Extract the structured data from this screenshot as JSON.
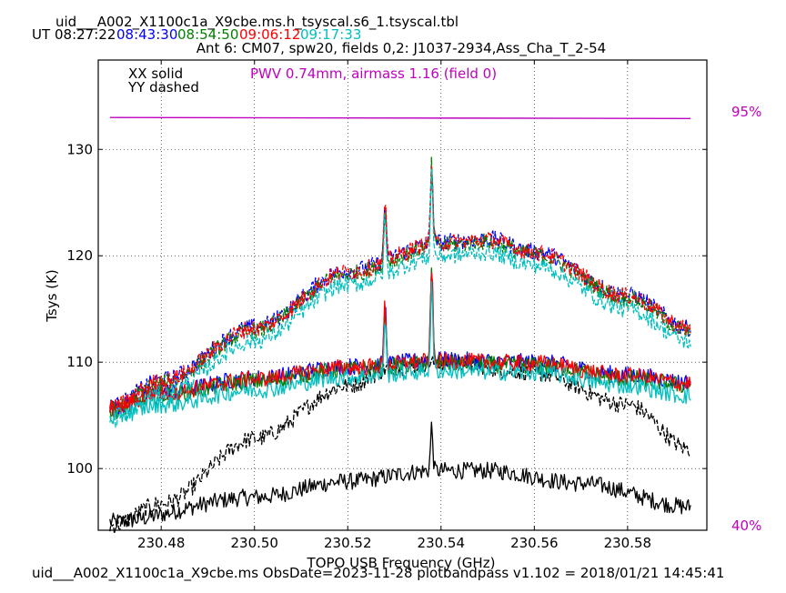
{
  "header": {
    "filename": "uid___A002_X1100c1a_X9cbe.ms.h_tsyscal.s6_1.tsyscal.tbl",
    "ut_label": "UT",
    "times": [
      {
        "text": "08:27:22",
        "color": "#000000"
      },
      {
        "text": "08:43:30",
        "color": "#0000ff"
      },
      {
        "text": "08:54:50",
        "color": "#007f00"
      },
      {
        "text": "09:06:12",
        "color": "#ff0000"
      },
      {
        "text": "09:17:33",
        "color": "#00bfbf"
      }
    ],
    "subtitle": "Ant 6: CM07,  spw20,  fields 0,2: J1037-2934,Ass_Cha_T_2-54"
  },
  "legend": {
    "xx": "XX solid",
    "yy": "YY dashed",
    "pwv": "PWV 0.74mm, airmass 1.16 (field 0)",
    "pwv_color": "#bf00bf"
  },
  "right_axis": {
    "top_label": "95%",
    "bottom_label": "40%",
    "color": "#bf00bf"
  },
  "footer": "uid___A002_X1100c1a_X9cbe.ms  ObsDate=2023-11-28   plotbandpass v1.102 = 2018/01/21 14:45:41",
  "chart_data": {
    "type": "line",
    "xlabel": "TOPO USB Frequency (GHz)",
    "ylabel": "Tsys (K)",
    "xlim": [
      230.4665,
      230.597
    ],
    "ylim": [
      94.2,
      138.4
    ],
    "xticks": [
      230.48,
      230.5,
      230.52,
      230.54,
      230.56,
      230.58
    ],
    "yticks": [
      100,
      110,
      120,
      130
    ],
    "xtick_labels": [
      "230.48",
      "230.50",
      "230.52",
      "230.54",
      "230.56",
      "230.58"
    ],
    "ytick_labels": [
      "100",
      "110",
      "120",
      "130"
    ],
    "grid": true,
    "freq_range": [
      230.469,
      230.5935
    ],
    "spectral_lines_ghz": [
      230.528,
      230.538
    ],
    "transmission": {
      "color": "#bf00bf",
      "y_start": 133.0,
      "y_end": 132.9
    },
    "series": [
      {
        "name": "08:27:22",
        "color": "#000000",
        "polarization": "XX",
        "dashed": false,
        "points": [
          [
            230.469,
            95.0
          ],
          [
            230.5,
            97.3
          ],
          [
            230.52,
            98.8
          ],
          [
            230.538,
            99.8
          ],
          [
            230.55,
            99.8
          ],
          [
            230.57,
            98.6
          ],
          [
            230.5935,
            96.4
          ]
        ],
        "peaks": [
          [
            230.538,
            104.0
          ]
        ]
      },
      {
        "name": "08:27:22",
        "color": "#000000",
        "polarization": "YY",
        "dashed": true,
        "points": [
          [
            230.469,
            94.6
          ],
          [
            230.48,
            96.7
          ],
          [
            230.5,
            102.8
          ],
          [
            230.52,
            107.8
          ],
          [
            230.53,
            109.5
          ],
          [
            230.54,
            110.0
          ],
          [
            230.56,
            109.0
          ],
          [
            230.58,
            106.0
          ],
          [
            230.5935,
            101.8
          ]
        ],
        "peaks": []
      },
      {
        "name": "08:43:30",
        "color": "#0000ff",
        "polarization": "XX",
        "dashed": false,
        "points": [
          [
            230.469,
            105.7
          ],
          [
            230.48,
            107.2
          ],
          [
            230.5,
            108.5
          ],
          [
            230.52,
            109.6
          ],
          [
            230.54,
            110.2
          ],
          [
            230.56,
            110.0
          ],
          [
            230.58,
            108.8
          ],
          [
            230.5935,
            108.1
          ]
        ],
        "peaks": [
          [
            230.528,
            115.5
          ],
          [
            230.538,
            119.0
          ]
        ]
      },
      {
        "name": "08:43:30",
        "color": "#0000ff",
        "polarization": "YY",
        "dashed": true,
        "points": [
          [
            230.469,
            105.8
          ],
          [
            230.48,
            108.3
          ],
          [
            230.5,
            113.3
          ],
          [
            230.52,
            118.6
          ],
          [
            230.54,
            121.3
          ],
          [
            230.55,
            121.6
          ],
          [
            230.56,
            120.4
          ],
          [
            230.58,
            116.3
          ],
          [
            230.5935,
            113.2
          ]
        ],
        "peaks": [
          [
            230.528,
            125.0
          ],
          [
            230.538,
            129.0
          ]
        ]
      },
      {
        "name": "08:54:50",
        "color": "#007f00",
        "polarization": "XX",
        "dashed": false,
        "points": [
          [
            230.469,
            105.4
          ],
          [
            230.48,
            106.9
          ],
          [
            230.5,
            108.2
          ],
          [
            230.52,
            109.3
          ],
          [
            230.54,
            109.9
          ],
          [
            230.56,
            109.7
          ],
          [
            230.58,
            108.5
          ],
          [
            230.5935,
            107.8
          ]
        ],
        "peaks": [
          [
            230.528,
            115.0
          ],
          [
            230.538,
            118.6
          ]
        ]
      },
      {
        "name": "08:54:50",
        "color": "#007f00",
        "polarization": "YY",
        "dashed": true,
        "points": [
          [
            230.469,
            105.5
          ],
          [
            230.48,
            108.0
          ],
          [
            230.5,
            113.0
          ],
          [
            230.52,
            118.3
          ],
          [
            230.54,
            121.0
          ],
          [
            230.55,
            121.3
          ],
          [
            230.56,
            120.1
          ],
          [
            230.58,
            116.0
          ],
          [
            230.5935,
            112.9
          ]
        ],
        "peaks": [
          [
            230.528,
            124.6
          ],
          [
            230.538,
            128.6
          ]
        ]
      },
      {
        "name": "09:06:12",
        "color": "#ff0000",
        "polarization": "XX",
        "dashed": false,
        "points": [
          [
            230.469,
            105.6
          ],
          [
            230.48,
            107.1
          ],
          [
            230.5,
            108.4
          ],
          [
            230.52,
            109.5
          ],
          [
            230.54,
            110.1
          ],
          [
            230.56,
            109.9
          ],
          [
            230.58,
            108.7
          ],
          [
            230.5935,
            108.0
          ]
        ],
        "peaks": [
          [
            230.528,
            115.6
          ],
          [
            230.538,
            119.2
          ]
        ]
      },
      {
        "name": "09:06:12",
        "color": "#ff0000",
        "polarization": "YY",
        "dashed": true,
        "points": [
          [
            230.469,
            105.7
          ],
          [
            230.48,
            108.2
          ],
          [
            230.5,
            113.2
          ],
          [
            230.52,
            118.5
          ],
          [
            230.54,
            121.2
          ],
          [
            230.55,
            121.5
          ],
          [
            230.56,
            120.3
          ],
          [
            230.58,
            116.2
          ],
          [
            230.5935,
            113.1
          ]
        ],
        "peaks": [
          [
            230.528,
            125.4
          ],
          [
            230.538,
            129.0
          ]
        ]
      },
      {
        "name": "09:17:33",
        "color": "#00bfbf",
        "polarization": "XX",
        "dashed": false,
        "points": [
          [
            230.469,
            104.8
          ],
          [
            230.48,
            106.0
          ],
          [
            230.5,
            107.4
          ],
          [
            230.52,
            108.6
          ],
          [
            230.54,
            109.2
          ],
          [
            230.56,
            109.0
          ],
          [
            230.58,
            107.8
          ],
          [
            230.5935,
            106.8
          ]
        ],
        "peaks": [
          [
            230.528,
            114.2
          ],
          [
            230.538,
            117.0
          ]
        ]
      },
      {
        "name": "09:17:33",
        "color": "#00bfbf",
        "polarization": "YY",
        "dashed": true,
        "points": [
          [
            230.469,
            104.5
          ],
          [
            230.48,
            107.0
          ],
          [
            230.5,
            112.0
          ],
          [
            230.52,
            117.3
          ],
          [
            230.54,
            120.0
          ],
          [
            230.55,
            120.3
          ],
          [
            230.56,
            119.1
          ],
          [
            230.58,
            115.0
          ],
          [
            230.5935,
            111.9
          ]
        ],
        "peaks": [
          [
            230.528,
            123.6
          ],
          [
            230.538,
            128.0
          ]
        ]
      }
    ]
  }
}
